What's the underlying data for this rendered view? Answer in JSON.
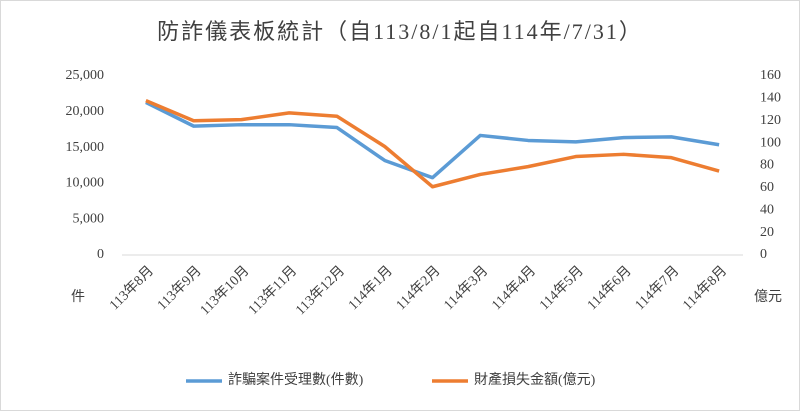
{
  "chart_data": {
    "type": "line",
    "title": "防詐儀表板統計（自113/8/1起自114年/7/31）",
    "y_label": "件",
    "y2_label": "億元",
    "categories": [
      "113年8月",
      "113年9月",
      "113年10月",
      "113年11月",
      "113年12月",
      "114年1月",
      "114年2月",
      "114年3月",
      "114年4月",
      "114年5月",
      "114年6月",
      "114年7月",
      "114年8月"
    ],
    "series": [
      {
        "name": "詐騙案件受理數(件數)",
        "color": "#5b9bd5",
        "values": [
          21300,
          18000,
          18200,
          18200,
          17800,
          13200,
          10800,
          16700,
          16000,
          15800,
          16400,
          16500,
          15400
        ]
      },
      {
        "name": "財產損失金額(億元)",
        "color": "#ed7d31",
        "axis": "y2",
        "values": [
          138,
          120,
          121,
          127,
          124,
          97,
          61,
          72,
          79,
          88,
          90,
          87,
          75
        ]
      }
    ],
    "ylim": [
      0,
      25000
    ],
    "yticks": [
      0,
      {
        "value": 5000,
        "label": "5,000"
      },
      {
        "value": 10000,
        "label": "10,000"
      },
      {
        "value": 15000,
        "label": "15,000"
      },
      {
        "value": 20000,
        "label": "20,000"
      },
      {
        "value": 25000,
        "label": "25,000"
      }
    ],
    "y2lim": [
      0,
      160
    ],
    "y2ticks": [
      0,
      20,
      40,
      60,
      80,
      100,
      120,
      140,
      160
    ],
    "grid": false,
    "legend": "bottom"
  }
}
